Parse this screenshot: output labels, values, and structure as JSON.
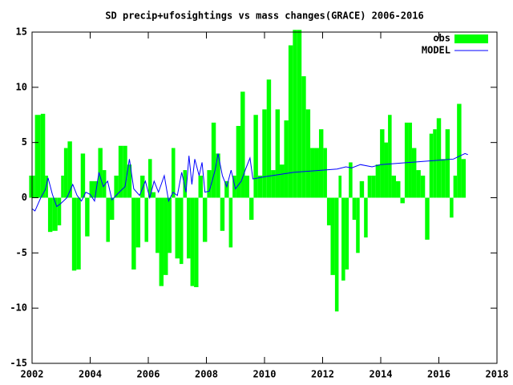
{
  "chart_data": {
    "type": "boxes-line",
    "title": "SD precip+ufosightings vs mass changes(GRACE) 2006-2016",
    "xlim": [
      2002,
      2018
    ],
    "xticks": [
      2002,
      2004,
      2006,
      2008,
      2010,
      2012,
      2014,
      2016,
      2018
    ],
    "ylim": [
      -15,
      15
    ],
    "yticks": [
      -15,
      -10,
      -5,
      0,
      5,
      10,
      15
    ],
    "grid": false,
    "legend": "top-right",
    "series": [
      {
        "name": "obs",
        "color": "#00ff00",
        "style": "boxes",
        "x": [
          2002.0,
          2002.2,
          2002.4,
          2002.5,
          2002.6,
          2002.8,
          2002.95,
          2003.05,
          2003.15,
          2003.3,
          2003.45,
          2003.6,
          2003.75,
          2003.9,
          2004.05,
          2004.2,
          2004.35,
          2004.5,
          2004.6,
          2004.75,
          2004.9,
          2005.05,
          2005.2,
          2005.35,
          2005.5,
          2005.65,
          2005.8,
          2005.95,
          2006.05,
          2006.2,
          2006.3,
          2006.45,
          2006.6,
          2006.75,
          2006.85,
          2007.0,
          2007.15,
          2007.25,
          2007.4,
          2007.5,
          2007.65,
          2007.8,
          2007.95,
          2008.1,
          2008.25,
          2008.4,
          2008.55,
          2008.7,
          2008.85,
          2008.95,
          2009.1,
          2009.25,
          2009.4,
          2009.55,
          2009.7,
          2009.85,
          2010.0,
          2010.15,
          2010.3,
          2010.45,
          2010.6,
          2010.75,
          2010.9,
          2011.05,
          2011.2,
          2011.35,
          2011.5,
          2011.65,
          2011.8,
          2011.95,
          2012.1,
          2012.2,
          2012.35,
          2012.5,
          2012.6,
          2012.7,
          2012.85,
          2012.95,
          2013.1,
          2013.2,
          2013.35,
          2013.5,
          2013.6,
          2013.75,
          2013.9,
          2014.05,
          2014.2,
          2014.3,
          2014.45,
          2014.6,
          2014.75,
          2014.9,
          2015.0,
          2015.15,
          2015.3,
          2015.45,
          2015.6,
          2015.75,
          2015.85,
          2016.0,
          2016.15,
          2016.3,
          2016.45,
          2016.55,
          2016.7,
          2016.85
        ],
        "values": [
          2,
          7.5,
          7.6,
          2,
          -3.1,
          -3,
          -2.5,
          2,
          4.5,
          5.1,
          -6.6,
          -6.5,
          4,
          -3.5,
          1.5,
          1.5,
          4.5,
          2.5,
          -4,
          -2,
          2,
          4.7,
          4.7,
          3,
          -6.5,
          -4.5,
          2,
          -4,
          3.5,
          0.5,
          -5,
          -8,
          -7,
          -5,
          4.5,
          -5.5,
          -6,
          2.5,
          -5.5,
          -8,
          -8.1,
          2,
          -4,
          2.5,
          6.8,
          4,
          -3,
          1.5,
          -4.5,
          2,
          6.5,
          9.6,
          2,
          -2,
          7.5,
          2,
          8,
          10.7,
          2.5,
          8,
          3,
          7,
          13.8,
          15.2,
          15.2,
          11,
          8,
          4.5,
          4.5,
          6.2,
          4.5,
          -2.5,
          -7,
          -10.3,
          2,
          -7.5,
          -6.5,
          3.2,
          -2,
          -5,
          1.5,
          -3.6,
          2,
          2,
          3,
          6.2,
          5,
          7.5,
          2,
          1.5,
          -0.5,
          6.8,
          6.8,
          4.5,
          2.5,
          2,
          -3.8,
          5.8,
          6.2,
          7.2,
          3.5,
          6.2,
          -1.8,
          2,
          8.5,
          3.5
        ]
      },
      {
        "name": "MODEL",
        "color": "#0000ff",
        "style": "line",
        "x": [
          2002.0,
          2002.1,
          2002.3,
          2002.45,
          2002.55,
          2002.7,
          2002.85,
          2003.0,
          2003.2,
          2003.4,
          2003.55,
          2003.7,
          2003.85,
          2004.0,
          2004.15,
          2004.3,
          2004.45,
          2004.6,
          2004.75,
          2005.0,
          2005.2,
          2005.35,
          2005.5,
          2005.7,
          2005.9,
          2006.05,
          2006.2,
          2006.35,
          2006.55,
          2006.7,
          2006.85,
          2007.0,
          2007.15,
          2007.3,
          2007.4,
          2007.5,
          2007.6,
          2007.75,
          2007.85,
          2007.95,
          2008.1,
          2008.3,
          2008.4,
          2008.55,
          2008.7,
          2008.85,
          2009.0,
          2009.2,
          2009.35,
          2009.5,
          2009.6,
          2009.8,
          2010.0,
          2010.5,
          2011.0,
          2011.5,
          2012.0,
          2012.5,
          2012.8,
          2013.0,
          2013.3,
          2013.7,
          2014.0,
          2014.5,
          2015.0,
          2015.5,
          2016.0,
          2016.5,
          2016.9,
          2017.0
        ],
        "values": [
          -1,
          -1.2,
          0,
          0.7,
          1.8,
          0.3,
          -0.8,
          -0.5,
          0,
          1.2,
          0.2,
          -0.3,
          0.5,
          0.3,
          -0.3,
          2.3,
          1,
          1.5,
          -0.2,
          0.5,
          1,
          3.5,
          0.8,
          0.2,
          1.5,
          0,
          1.5,
          0.5,
          2,
          -0.3,
          0.5,
          0.2,
          2.3,
          0.5,
          3.8,
          1.2,
          3.5,
          2,
          3.2,
          0.5,
          0.6,
          2.5,
          4,
          2,
          1,
          2.5,
          0.8,
          1.5,
          2.6,
          3.6,
          1.7,
          1.8,
          1.9,
          2.1,
          2.3,
          2.4,
          2.5,
          2.6,
          2.8,
          2.7,
          3.0,
          2.8,
          3.0,
          3.1,
          3.2,
          3.3,
          3.4,
          3.5,
          4,
          3.9
        ]
      }
    ]
  }
}
